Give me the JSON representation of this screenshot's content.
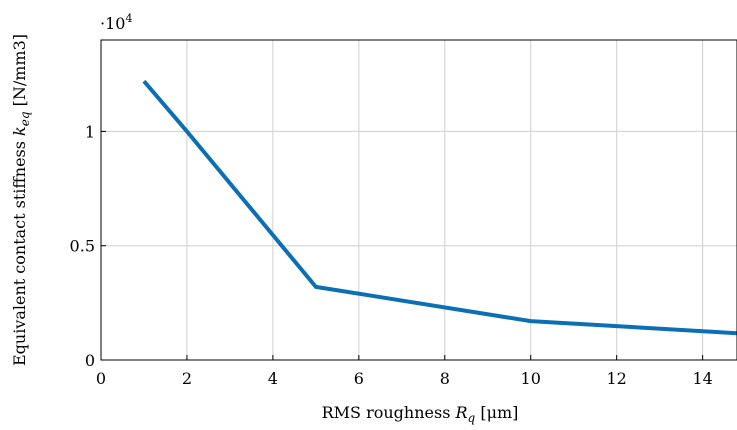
{
  "chart_data": {
    "type": "line",
    "xlabel_main": "RMS roughness ",
    "xlabel_symbol": "R",
    "xlabel_subscript": "q",
    "xlabel_unit": " [μm]",
    "ylabel_main": "Equivalent contact stiffness ",
    "ylabel_symbol": "k",
    "ylabel_subscript": "eq",
    "ylabel_unit": " [N/mm3]",
    "y_multiplier_base": "·10",
    "y_multiplier_exp": "4",
    "xlim": [
      0,
      14.8
    ],
    "ylim": [
      0,
      14000
    ],
    "grid": true,
    "x_ticks": [
      0,
      2,
      4,
      6,
      8,
      10,
      12,
      14
    ],
    "x_tick_labels": [
      "0",
      "2",
      "4",
      "6",
      "8",
      "10",
      "12",
      "14"
    ],
    "y_ticks": [
      0,
      5000,
      10000
    ],
    "y_tick_labels": [
      "0",
      "0.5",
      "1"
    ],
    "series": [
      {
        "color": "#0b6fb6",
        "x": [
          1,
          2,
          5,
          10,
          15
        ],
        "y": [
          12200,
          10000,
          3200,
          1700,
          1150
        ]
      }
    ]
  }
}
